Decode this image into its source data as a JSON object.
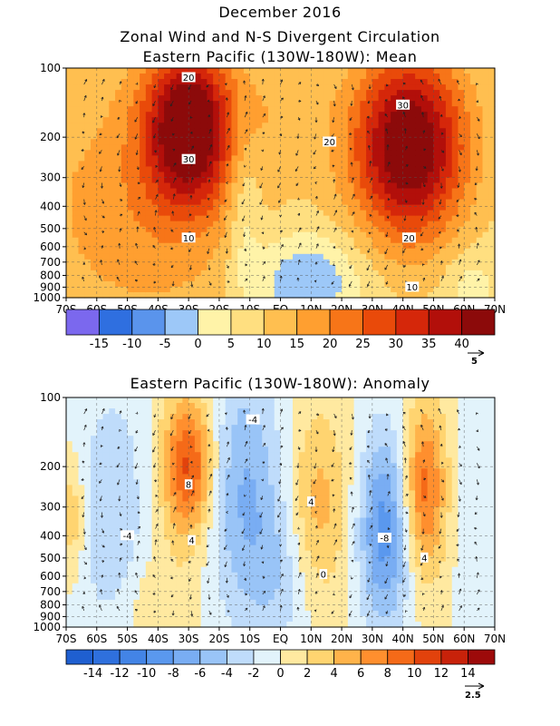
{
  "figure": {
    "title": "December 2016",
    "subtitle": "Zonal Wind and N-S Divergent Circulation"
  },
  "chart_data": [
    {
      "type": "heatmap",
      "title": "Eastern Pacific (130W-180W): Mean",
      "x_ticks": [
        "70S",
        "60S",
        "50S",
        "40S",
        "30S",
        "20S",
        "10S",
        "EQ",
        "10N",
        "20N",
        "30N",
        "40N",
        "50N",
        "60N",
        "70N"
      ],
      "x_range": [
        -70,
        70
      ],
      "y_ticks": [
        100,
        200,
        300,
        400,
        500,
        600,
        700,
        800,
        900,
        1000
      ],
      "y_range": [
        100,
        1000
      ],
      "y_scale": "log",
      "colorbar": {
        "labels": [
          "-15",
          "-10",
          "-5",
          "0",
          "5",
          "10",
          "15",
          "20",
          "25",
          "30",
          "35",
          "40"
        ],
        "bounds": [
          -20,
          -15,
          -10,
          -5,
          0,
          5,
          10,
          15,
          20,
          25,
          30,
          35,
          40,
          45
        ],
        "colors": [
          "#7b68ee",
          "#2f6fe0",
          "#5a94ec",
          "#9dc8f8",
          "#fff3a8",
          "#ffdf80",
          "#ffbf50",
          "#ff9f30",
          "#f77518",
          "#e94a0a",
          "#d5270a",
          "#b20f0a",
          "#8c0a0a"
        ]
      },
      "vector_reference": "5",
      "contour_labels": [
        {
          "text": "20",
          "lat": -30,
          "p": 110
        },
        {
          "text": "30",
          "lat": -30,
          "p": 250
        },
        {
          "text": "10",
          "lat": -30,
          "p": 550
        },
        {
          "text": "20",
          "lat": 16,
          "p": 210
        },
        {
          "text": "30",
          "lat": 40,
          "p": 145
        },
        {
          "text": "20",
          "lat": 42,
          "p": 550
        },
        {
          "text": "10",
          "lat": 43,
          "p": 900
        }
      ],
      "features": [
        {
          "lat": -30,
          "p": 180,
          "value": 38,
          "sx": 10,
          "sy": 0.55
        },
        {
          "lat": 42,
          "p": 220,
          "value": 40,
          "sx": 13,
          "sy": 0.65
        },
        {
          "lat": -45,
          "p": 400,
          "value": 10,
          "sx": 28,
          "sy": 1.0
        },
        {
          "lat": 8,
          "p": 850,
          "value": -14,
          "sx": 13,
          "sy": 0.35
        },
        {
          "lat": -12,
          "p": 400,
          "value": -8,
          "sx": 4,
          "sy": 0.6
        },
        {
          "lat": 62,
          "p": 900,
          "value": -6,
          "sx": 6,
          "sy": 0.3
        },
        {
          "lat": 0,
          "p": 150,
          "value": 4,
          "sx": 12,
          "sy": 0.4
        }
      ],
      "base": 8
    },
    {
      "type": "heatmap",
      "title": "Eastern Pacific (130W-180W): Anomaly",
      "x_ticks": [
        "70S",
        "60S",
        "50S",
        "40S",
        "30S",
        "20S",
        "10S",
        "EQ",
        "10N",
        "20N",
        "30N",
        "40N",
        "50N",
        "60N",
        "70N"
      ],
      "x_range": [
        -70,
        70
      ],
      "y_ticks": [
        100,
        200,
        300,
        400,
        500,
        600,
        700,
        800,
        900,
        1000
      ],
      "y_range": [
        100,
        1000
      ],
      "y_scale": "log",
      "colorbar": {
        "labels": [
          "-14",
          "-12",
          "-10",
          "-8",
          "-6",
          "-4",
          "-2",
          "0",
          "2",
          "4",
          "6",
          "8",
          "10",
          "12",
          "14"
        ],
        "bounds": [
          -16,
          -14,
          -12,
          -10,
          -8,
          -6,
          -4,
          -2,
          0,
          2,
          4,
          6,
          8,
          10,
          12,
          14,
          16
        ],
        "colors": [
          "#1f5fd0",
          "#2f70dd",
          "#4384e6",
          "#5a98ee",
          "#79adf3",
          "#99c4f7",
          "#bfdcfb",
          "#e2f3fb",
          "#ffe9a0",
          "#ffd470",
          "#ffb34a",
          "#ff8f2e",
          "#f56a18",
          "#e2420c",
          "#c8220a",
          "#9d0a0a"
        ]
      },
      "vector_reference": "2.5",
      "contour_labels": [
        {
          "text": "-4",
          "lat": -9,
          "p": 125
        },
        {
          "text": "8",
          "lat": -30,
          "p": 240
        },
        {
          "text": "4",
          "lat": -29,
          "p": 420
        },
        {
          "text": "-4",
          "lat": -50,
          "p": 400
        },
        {
          "text": "4",
          "lat": 10,
          "p": 285
        },
        {
          "text": "0",
          "lat": 14,
          "p": 590
        },
        {
          "text": "-8",
          "lat": 34,
          "p": 410
        },
        {
          "text": "4",
          "lat": 47,
          "p": 500
        }
      ],
      "features": [
        {
          "lat": -30,
          "p": 200,
          "value": 11,
          "sx": 6,
          "sy": 0.5
        },
        {
          "lat": 47,
          "p": 250,
          "value": 9,
          "sx": 5,
          "sy": 0.6
        },
        {
          "lat": 34,
          "p": 380,
          "value": -9,
          "sx": 6,
          "sy": 0.7
        },
        {
          "lat": -12,
          "p": 250,
          "value": -6,
          "sx": 9,
          "sy": 0.9
        },
        {
          "lat": -55,
          "p": 330,
          "value": -4,
          "sx": 8,
          "sy": 0.9
        },
        {
          "lat": 12,
          "p": 300,
          "value": 5,
          "sx": 7,
          "sy": 0.7
        },
        {
          "lat": -68,
          "p": 330,
          "value": 4,
          "sx": 3,
          "sy": 0.4
        },
        {
          "lat": 65,
          "p": 400,
          "value": -2,
          "sx": 5,
          "sy": 0.9
        },
        {
          "lat": 0,
          "p": 600,
          "value": -3,
          "sx": 8,
          "sy": 0.6
        },
        {
          "lat": -40,
          "p": 800,
          "value": 2,
          "sx": 10,
          "sy": 0.4
        }
      ],
      "base": 0
    }
  ]
}
